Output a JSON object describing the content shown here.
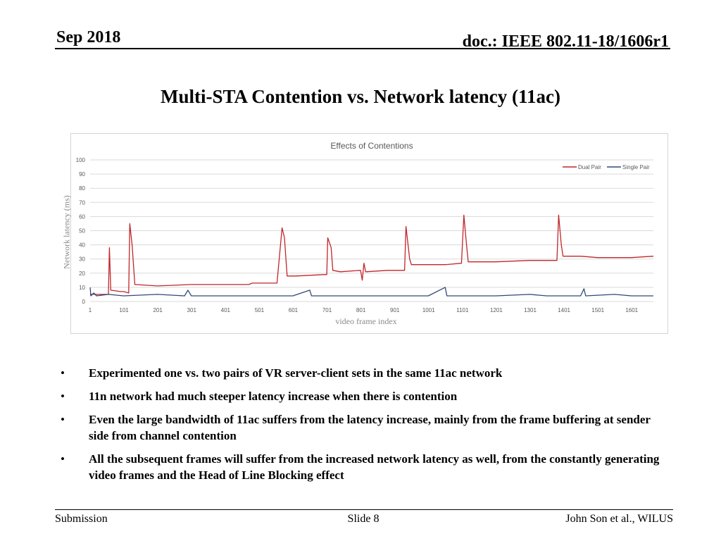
{
  "header": {
    "date": "Sep 2018",
    "doc": "doc.: IEEE 802.11-18/1606r1"
  },
  "title": "Multi-STA Contention vs. Network latency (11ac)",
  "chart_data": {
    "type": "line",
    "title": "Effects of Contentions",
    "xlabel": "video frame index",
    "ylabel": "Network latency (ms)",
    "ylim": [
      0,
      100
    ],
    "xlim": [
      1,
      1665
    ],
    "yticks": [
      0,
      10,
      20,
      30,
      40,
      50,
      60,
      70,
      80,
      90,
      100
    ],
    "xticks": [
      "1",
      "101",
      "201",
      "301",
      "401",
      "501",
      "601",
      "701",
      "801",
      "901",
      "1001",
      "1101",
      "1201",
      "1301",
      "1401",
      "1501",
      "1601"
    ],
    "grid": true,
    "legend_position": "top-right",
    "series": [
      {
        "name": "Dual Pair",
        "color": "#c0262a",
        "points": [
          [
            1,
            5
          ],
          [
            55,
            5
          ],
          [
            58,
            38
          ],
          [
            62,
            8
          ],
          [
            90,
            7
          ],
          [
            100,
            7
          ],
          [
            115,
            6
          ],
          [
            118,
            55
          ],
          [
            125,
            40
          ],
          [
            133,
            12
          ],
          [
            200,
            11
          ],
          [
            300,
            12
          ],
          [
            400,
            12
          ],
          [
            470,
            12
          ],
          [
            480,
            13
          ],
          [
            553,
            13
          ],
          [
            568,
            52
          ],
          [
            575,
            45
          ],
          [
            583,
            18
          ],
          [
            610,
            18
          ],
          [
            690,
            19
          ],
          [
            700,
            19
          ],
          [
            703,
            45
          ],
          [
            713,
            38
          ],
          [
            718,
            22
          ],
          [
            740,
            21
          ],
          [
            800,
            22
          ],
          [
            805,
            15
          ],
          [
            810,
            27
          ],
          [
            815,
            21
          ],
          [
            880,
            22
          ],
          [
            920,
            22
          ],
          [
            930,
            22
          ],
          [
            934,
            53
          ],
          [
            945,
            30
          ],
          [
            950,
            26
          ],
          [
            1000,
            26
          ],
          [
            1050,
            26
          ],
          [
            1098,
            27
          ],
          [
            1105,
            61
          ],
          [
            1113,
            40
          ],
          [
            1118,
            28
          ],
          [
            1200,
            28
          ],
          [
            1300,
            29
          ],
          [
            1380,
            29
          ],
          [
            1385,
            61
          ],
          [
            1393,
            40
          ],
          [
            1398,
            32
          ],
          [
            1450,
            32
          ],
          [
            1500,
            31
          ],
          [
            1600,
            31
          ],
          [
            1665,
            32
          ]
        ]
      },
      {
        "name": "Single Pair",
        "color": "#2f4a78",
        "points": [
          [
            1,
            10
          ],
          [
            3,
            4
          ],
          [
            12,
            6
          ],
          [
            20,
            4
          ],
          [
            55,
            5
          ],
          [
            100,
            4
          ],
          [
            200,
            5
          ],
          [
            280,
            4
          ],
          [
            290,
            8
          ],
          [
            300,
            4
          ],
          [
            400,
            4
          ],
          [
            500,
            4
          ],
          [
            600,
            4
          ],
          [
            650,
            8
          ],
          [
            655,
            4
          ],
          [
            700,
            4
          ],
          [
            800,
            4
          ],
          [
            900,
            4
          ],
          [
            1000,
            4
          ],
          [
            1050,
            10
          ],
          [
            1055,
            4
          ],
          [
            1100,
            4
          ],
          [
            1200,
            4
          ],
          [
            1300,
            5
          ],
          [
            1350,
            4
          ],
          [
            1400,
            4
          ],
          [
            1450,
            4
          ],
          [
            1460,
            9
          ],
          [
            1465,
            4
          ],
          [
            1550,
            5
          ],
          [
            1600,
            4
          ],
          [
            1665,
            4
          ]
        ]
      }
    ]
  },
  "bullets": [
    "Experimented one vs. two pairs of VR server-client sets in the same 11ac network",
    "11n network had much steeper latency increase when there is contention",
    "Even the large bandwidth of 11ac suffers from the latency increase, mainly from the frame buffering at sender side from channel contention",
    "All the subsequent frames will suffer from the increased network latency as well, from the constantly generating video frames and the Head of Line Blocking effect"
  ],
  "bullet_symbol": "•",
  "footer": {
    "left": "Submission",
    "center": "Slide 8",
    "right": "John Son et al., WILUS"
  }
}
